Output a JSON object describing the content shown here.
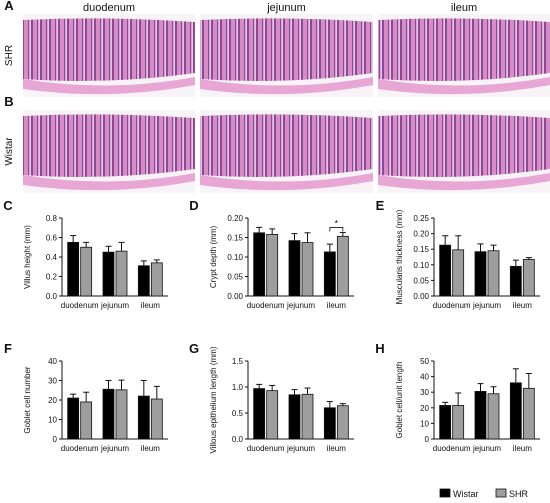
{
  "histology": {
    "column_headers": [
      "duodenum",
      "jejunum",
      "ileum"
    ],
    "rows": [
      {
        "panel": "A",
        "label": "SHR"
      },
      {
        "panel": "B",
        "label": "Wistar"
      }
    ]
  },
  "legend": {
    "placement": "bottom-right",
    "entries": [
      {
        "name": "Wistar",
        "color": "#000000"
      },
      {
        "name": "SHR",
        "color": "#9e9e9e"
      }
    ]
  },
  "colors": {
    "wistar": "#000000",
    "shr": "#9e9e9e",
    "tissue_pink": "#e9a9d3",
    "tissue_purple": "#7a3a8e",
    "background": "#ffffff"
  },
  "chart_data": [
    {
      "panel": "C",
      "type": "bar",
      "ylabel": "Villus height (mm)",
      "categories": [
        "duodenum",
        "jejunum",
        "ileum"
      ],
      "ylim": [
        0,
        0.8
      ],
      "yticks": [
        "0.0",
        "0.2",
        "0.4",
        "0.6",
        "0.8"
      ],
      "series": [
        {
          "name": "Wistar",
          "values": [
            0.55,
            0.45,
            0.31
          ],
          "errors": [
            0.07,
            0.06,
            0.05
          ]
        },
        {
          "name": "SHR",
          "values": [
            0.5,
            0.46,
            0.34
          ],
          "errors": [
            0.05,
            0.09,
            0.03
          ]
        }
      ]
    },
    {
      "panel": "D",
      "type": "bar",
      "ylabel": "Crypt depth (mm)",
      "categories": [
        "duodenum",
        "jejunum",
        "ileum"
      ],
      "ylim": [
        0,
        0.2
      ],
      "yticks": [
        "0.00",
        "0.05",
        "0.10",
        "0.15",
        "0.20"
      ],
      "series": [
        {
          "name": "Wistar",
          "values": [
            0.162,
            0.142,
            0.113
          ],
          "errors": [
            0.014,
            0.018,
            0.02
          ]
        },
        {
          "name": "SHR",
          "values": [
            0.158,
            0.137,
            0.153
          ],
          "errors": [
            0.014,
            0.025,
            0.01
          ]
        }
      ],
      "annotations": [
        {
          "category": "ileum",
          "text": "*"
        }
      ]
    },
    {
      "panel": "E",
      "type": "bar",
      "ylabel": "Muscularis thickness (mm)",
      "categories": [
        "duodenum",
        "jejunum",
        "ileum"
      ],
      "ylim": [
        0,
        0.25
      ],
      "yticks": [
        "0.00",
        "0.05",
        "0.10",
        "0.15",
        "0.20",
        "0.25"
      ],
      "series": [
        {
          "name": "Wistar",
          "values": [
            0.163,
            0.142,
            0.095
          ],
          "errors": [
            0.03,
            0.025,
            0.02
          ]
        },
        {
          "name": "SHR",
          "values": [
            0.148,
            0.145,
            0.117
          ],
          "errors": [
            0.045,
            0.018,
            0.006
          ]
        }
      ]
    },
    {
      "panel": "F",
      "type": "bar",
      "ylabel": "Goblet cell number",
      "categories": [
        "duodenum",
        "jejunum",
        "ileum"
      ],
      "ylim": [
        0,
        40
      ],
      "yticks": [
        "0",
        "10",
        "20",
        "30",
        "40"
      ],
      "series": [
        {
          "name": "Wistar",
          "values": [
            21,
            25.5,
            22
          ],
          "errors": [
            2,
            4.5,
            8
          ]
        },
        {
          "name": "SHR",
          "values": [
            19,
            25.2,
            20.5
          ],
          "errors": [
            5,
            5,
            6.5
          ]
        }
      ]
    },
    {
      "panel": "G",
      "type": "bar",
      "ylabel": "Villous epithelium length (mm)",
      "categories": [
        "duodenum",
        "jejunum",
        "ileum"
      ],
      "ylim": [
        0,
        1.5
      ],
      "yticks": [
        "0.0",
        "0.5",
        "1.0",
        "1.5"
      ],
      "series": [
        {
          "name": "Wistar",
          "values": [
            0.97,
            0.85,
            0.6
          ],
          "errors": [
            0.08,
            0.1,
            0.12
          ]
        },
        {
          "name": "SHR",
          "values": [
            0.93,
            0.86,
            0.64
          ],
          "errors": [
            0.1,
            0.12,
            0.04
          ]
        }
      ]
    },
    {
      "panel": "H",
      "type": "bar",
      "ylabel": "Goblet cell/unit length",
      "categories": [
        "duodenum",
        "jejunum",
        "ileum"
      ],
      "ylim": [
        0,
        50
      ],
      "yticks": [
        "0",
        "10",
        "20",
        "30",
        "40",
        "50"
      ],
      "series": [
        {
          "name": "Wistar",
          "values": [
            21.5,
            30.5,
            36
          ],
          "errors": [
            2,
            5,
            9
          ]
        },
        {
          "name": "SHR",
          "values": [
            21.5,
            29,
            32.5
          ],
          "errors": [
            8,
            4.5,
            9.5
          ]
        }
      ]
    }
  ]
}
